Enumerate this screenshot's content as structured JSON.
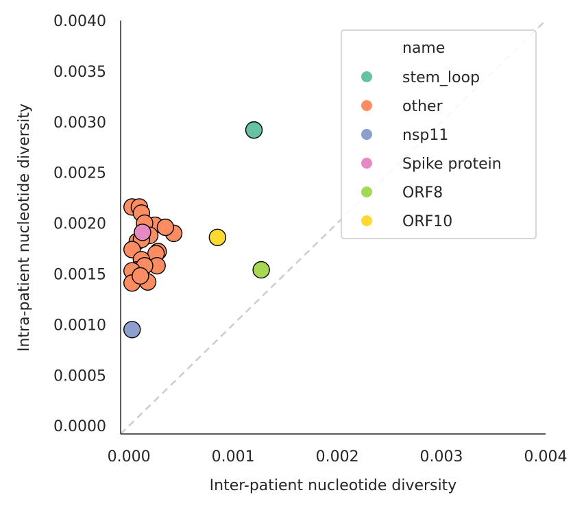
{
  "chart_data": {
    "type": "scatter",
    "xlabel": "Inter-patient nucleotide diversity",
    "ylabel": "Intra-patient nucleotide diversity",
    "xlim": [
      -8e-05,
      0.004
    ],
    "ylim": [
      -8e-05,
      0.004
    ],
    "xticks": [
      "0.000",
      "0.001",
      "0.002",
      "0.003",
      "0.004"
    ],
    "yticks": [
      "0.0000",
      "0.0005",
      "0.0010",
      "0.0015",
      "0.0020",
      "0.0025",
      "0.0030",
      "0.0035",
      "0.0040"
    ],
    "xtick_values": [
      0,
      0.001,
      0.002,
      0.003,
      0.004
    ],
    "ytick_values": [
      0,
      0.0005,
      0.001,
      0.0015,
      0.002,
      0.0025,
      0.003,
      0.0035,
      0.004
    ],
    "diagonal": true,
    "grid": false,
    "legend": {
      "title": "name",
      "placement": "top-right",
      "entries": [
        "stem_loop",
        "other",
        "nsp11",
        "Spike protein",
        "ORF8",
        "ORF10"
      ]
    },
    "series": [
      {
        "name": "stem_loop",
        "color": "#66c2a5",
        "points": [
          [
            0.0012,
            0.00292
          ]
        ]
      },
      {
        "name": "other",
        "color": "#fc8d62",
        "points": [
          [
            3e-05,
            0.00216
          ],
          [
            0.0001,
            0.00216
          ],
          [
            0.00012,
            0.0021
          ],
          [
            0.00025,
            0.00198
          ],
          [
            0.00015,
            0.002
          ],
          [
            0.00043,
            0.0019
          ],
          [
            0.00035,
            0.00196
          ],
          [
            0.0002,
            0.00188
          ],
          [
            8e-05,
            0.00182
          ],
          [
            0.00012,
            0.00184
          ],
          [
            3e-05,
            0.00174
          ],
          [
            0.00028,
            0.00172
          ],
          [
            0.00026,
            0.0017
          ],
          [
            0.00012,
            0.00164
          ],
          [
            8e-05,
            0.00154
          ],
          [
            0.00027,
            0.00158
          ],
          [
            0.00015,
            0.00158
          ],
          [
            3e-05,
            0.00153
          ],
          [
            0.00018,
            0.00142
          ],
          [
            3e-05,
            0.00141
          ],
          [
            0.00011,
            0.00148
          ]
        ]
      },
      {
        "name": "nsp11",
        "color": "#8da0cb",
        "points": [
          [
            3e-05,
            0.00095
          ]
        ]
      },
      {
        "name": "Spike protein",
        "color": "#e78ac3",
        "points": [
          [
            0.00013,
            0.00191
          ]
        ]
      },
      {
        "name": "ORF8",
        "color": "#a6d854",
        "points": [
          [
            0.00127,
            0.00154
          ]
        ]
      },
      {
        "name": "ORF10",
        "color": "#ffd92f",
        "points": [
          [
            0.00085,
            0.00186
          ]
        ]
      }
    ]
  }
}
